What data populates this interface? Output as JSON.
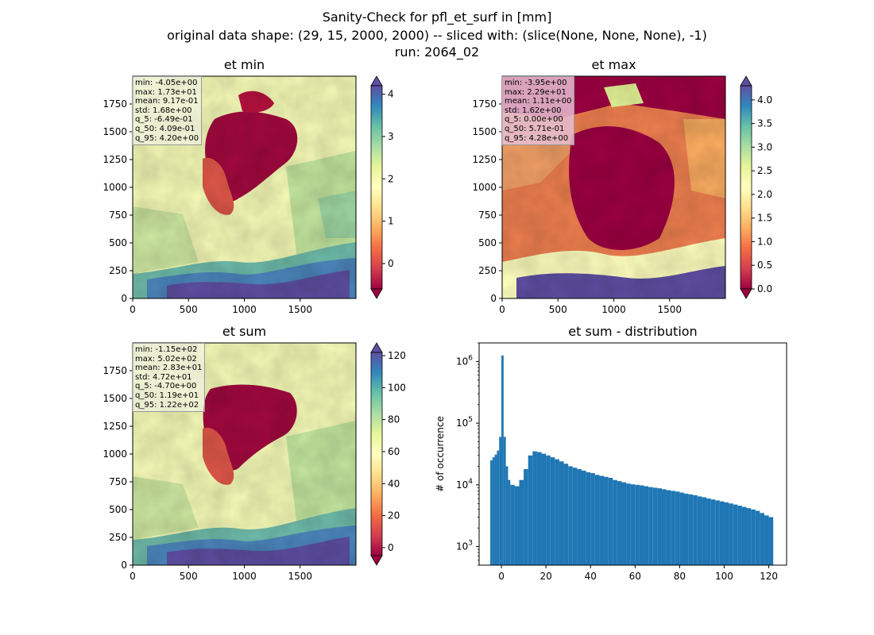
{
  "figure": {
    "title_line1": "Sanity-Check for pfl_et_surf in [mm]",
    "title_line2": "original data shape: (29, 15, 2000, 2000) -- sliced with: (slice(None, None, None), -1)",
    "title_line3": "run: 2064_02"
  },
  "panels": {
    "et_min": {
      "title": "et min",
      "stats": [
        "min: -4.05e+00",
        "max: 1.73e+01",
        "mean: 9.17e-01",
        "std: 1.68e+00",
        "q_5: -6.49e-01",
        "q_50: 4.09e-01",
        "q_95: 4.20e+00"
      ],
      "colorbar_ticks": [
        "4",
        "3",
        "2",
        "1",
        "0"
      ]
    },
    "et_max": {
      "title": "et max",
      "stats": [
        "min: -3.95e+00",
        "max: 2.29e+01",
        "mean: 1.11e+00",
        "std: 1.62e+00",
        "q_5: 0.00e+00",
        "q_50: 5.71e-01",
        "q_95: 4.28e+00"
      ],
      "colorbar_ticks": [
        "4.0",
        "3.5",
        "3.0",
        "2.5",
        "2.0",
        "1.5",
        "1.0",
        "0.5",
        "0.0"
      ]
    },
    "et_sum": {
      "title": "et sum",
      "stats": [
        "min: -1.15e+02",
        "max: 5.02e+02",
        "mean: 2.83e+01",
        "std: 4.72e+01",
        "q_5: -4.70e+00",
        "q_50: 1.19e+01",
        "q_95: 1.22e+02"
      ],
      "colorbar_ticks": [
        "120",
        "100",
        "80",
        "60",
        "40",
        "20",
        "0"
      ]
    },
    "et_sum_distribution": {
      "title": "et sum - distribution",
      "ylabel": "# of occurrence"
    }
  },
  "map_axes": {
    "x_ticks": [
      "0",
      "500",
      "1000",
      "1500"
    ],
    "y_ticks": [
      "1750",
      "1500",
      "1250",
      "1000",
      "750",
      "500",
      "250",
      "0"
    ]
  },
  "colors": {
    "spectral": [
      "#9e0142",
      "#d53e4f",
      "#f46d43",
      "#fdae61",
      "#fee08b",
      "#ffffbf",
      "#e6f598",
      "#abdda4",
      "#66c2a5",
      "#3288bd",
      "#5e4fa2"
    ],
    "hist_bar": "#1f77b4"
  },
  "chart_data": [
    {
      "type": "heatmap",
      "title": "et min",
      "xlim": [
        0,
        2000
      ],
      "ylim": [
        0,
        2000
      ],
      "colorbar_range": [
        -0.6,
        4.2
      ],
      "colormap": "Spectral"
    },
    {
      "type": "heatmap",
      "title": "et max",
      "xlim": [
        0,
        2000
      ],
      "ylim": [
        0,
        2000
      ],
      "colorbar_range": [
        0.0,
        4.3
      ],
      "colormap": "Spectral"
    },
    {
      "type": "heatmap",
      "title": "et sum",
      "xlim": [
        0,
        2000
      ],
      "ylim": [
        0,
        2000
      ],
      "colorbar_range": [
        -5,
        122
      ],
      "colormap": "Spectral"
    },
    {
      "type": "bar",
      "title": "et sum - distribution",
      "ylabel": "# of occurrence",
      "yscale": "log",
      "xlim": [
        -10,
        128
      ],
      "ylim": [
        500,
        2000000
      ],
      "x_ticks": [
        0,
        20,
        40,
        60,
        80,
        100,
        120
      ],
      "y_tick_labels": [
        "10^3",
        "10^4",
        "10^5",
        "10^6"
      ],
      "bin_range": [
        -5,
        122
      ],
      "peak": {
        "x": 0,
        "count": 1250000
      },
      "x": [
        -4.5,
        -3.5,
        -2.5,
        -1.5,
        -0.5,
        0.5,
        1.5,
        2.5,
        3.5,
        5,
        7,
        9,
        11,
        13,
        15,
        17,
        19,
        21,
        23,
        25,
        27,
        29,
        31,
        33,
        35,
        37,
        39,
        41,
        43,
        45,
        47,
        49,
        51,
        53,
        55,
        57,
        59,
        61,
        63,
        65,
        67,
        69,
        71,
        73,
        75,
        77,
        79,
        81,
        83,
        85,
        87,
        89,
        91,
        93,
        95,
        97,
        99,
        101,
        103,
        105,
        107,
        109,
        111,
        113,
        115,
        117,
        119,
        121
      ],
      "counts": [
        25000,
        28000,
        31000,
        36000,
        60000,
        1250000,
        60000,
        20000,
        12000,
        10000,
        9500,
        12000,
        18000,
        30000,
        35000,
        34000,
        32000,
        30000,
        28000,
        26000,
        24000,
        22000,
        20000,
        19000,
        18000,
        17000,
        16000,
        15500,
        14500,
        14000,
        13500,
        13000,
        12000,
        11500,
        11000,
        10500,
        10200,
        10000,
        9800,
        9500,
        9200,
        9000,
        8800,
        8500,
        8200,
        8000,
        7800,
        7500,
        7200,
        7000,
        6800,
        6500,
        6300,
        6000,
        5800,
        5600,
        5400,
        5200,
        5000,
        4800,
        4600,
        4400,
        4200,
        4000,
        3800,
        3500,
        3200,
        3000
      ]
    }
  ]
}
